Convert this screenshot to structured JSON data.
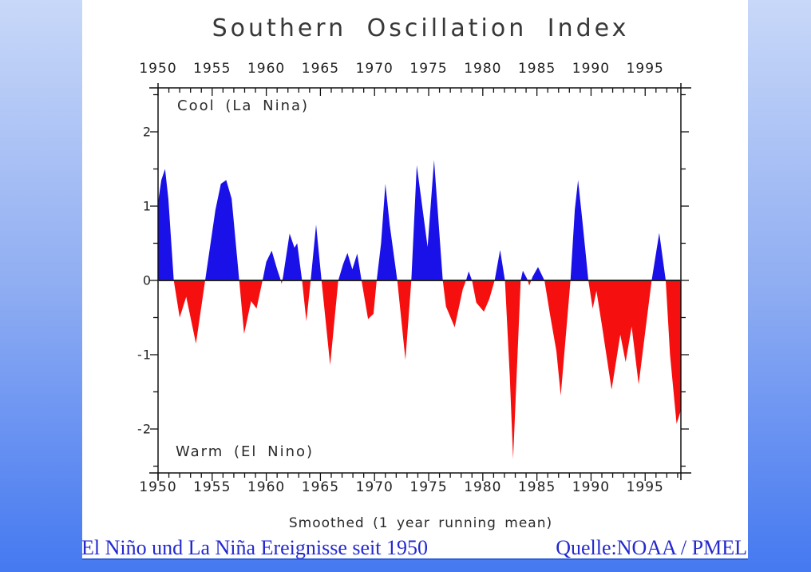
{
  "slide": {
    "background_top_color": "#c8d8f8",
    "background_bottom_color": "#4579f1",
    "caption_left": "El Niño und La Niña Ereignisse seit 1950",
    "caption_right": "Quelle:NOAA / PMEL",
    "caption_color": "#2329cf"
  },
  "chart_data": {
    "type": "area",
    "title": "Southern Oscillation Index",
    "xlabel": "Smoothed (1 year running mean)",
    "annotation_positive": "Cool (La Nina)",
    "annotation_negative": "Warm (El Nino)",
    "positive_color": "#1a10e8",
    "negative_color": "#f50f0f",
    "frame_color": "#111111",
    "zero_line_value": 0,
    "x_range": [
      1950,
      1998.3
    ],
    "y_range": [
      -2.59,
      2.59
    ],
    "x_major_ticks": [
      1950,
      1955,
      1960,
      1965,
      1970,
      1975,
      1980,
      1985,
      1990,
      1995
    ],
    "x_tick_labels": [
      "1950",
      "1955",
      "1960",
      "1965",
      "1970",
      "1975",
      "1980",
      "1985",
      "1990",
      "1995"
    ],
    "x_minor_tick_step": 1,
    "y_major_ticks": [
      2,
      1,
      0,
      -1,
      -2
    ],
    "y_tick_labels": [
      "2",
      "1",
      "0",
      "-1",
      "-2"
    ],
    "y_minor_tick_step": 0.5,
    "grid": false,
    "legend": "none",
    "series": [
      {
        "name": "Southern Oscillation Index (smoothed)",
        "points": [
          [
            1950.0,
            1.05
          ],
          [
            1950.3,
            1.35
          ],
          [
            1950.65,
            1.5
          ],
          [
            1950.95,
            1.1
          ],
          [
            1951.45,
            0
          ],
          [
            1952.0,
            -0.5
          ],
          [
            1952.6,
            -0.22
          ],
          [
            1953.5,
            -0.85
          ],
          [
            1954.35,
            0
          ],
          [
            1954.8,
            0.45
          ],
          [
            1955.3,
            0.95
          ],
          [
            1955.8,
            1.3
          ],
          [
            1956.3,
            1.35
          ],
          [
            1956.8,
            1.1
          ],
          [
            1957.5,
            0
          ],
          [
            1957.95,
            -0.72
          ],
          [
            1958.6,
            -0.28
          ],
          [
            1959.1,
            -0.38
          ],
          [
            1959.65,
            0
          ],
          [
            1960.0,
            0.25
          ],
          [
            1960.5,
            0.4
          ],
          [
            1961.0,
            0.15
          ],
          [
            1961.3,
            0.02
          ],
          [
            1961.42,
            -0.05
          ],
          [
            1961.55,
            0.05
          ],
          [
            1962.15,
            0.63
          ],
          [
            1962.6,
            0.44
          ],
          [
            1962.85,
            0.5
          ],
          [
            1963.3,
            0
          ],
          [
            1963.7,
            -0.55
          ],
          [
            1964.1,
            0
          ],
          [
            1964.6,
            0.75
          ],
          [
            1965.1,
            0
          ],
          [
            1965.9,
            -1.14
          ],
          [
            1966.65,
            0
          ],
          [
            1967.1,
            0.22
          ],
          [
            1967.5,
            0.37
          ],
          [
            1967.95,
            0.15
          ],
          [
            1968.4,
            0.36
          ],
          [
            1968.8,
            0
          ],
          [
            1969.4,
            -0.52
          ],
          [
            1969.9,
            -0.45
          ],
          [
            1970.2,
            0
          ],
          [
            1970.6,
            0.5
          ],
          [
            1971.0,
            1.3
          ],
          [
            1971.4,
            0.75
          ],
          [
            1972.1,
            0
          ],
          [
            1972.85,
            -1.07
          ],
          [
            1973.4,
            0
          ],
          [
            1973.9,
            1.55
          ],
          [
            1974.9,
            0.45
          ],
          [
            1975.5,
            1.62
          ],
          [
            1976.3,
            0
          ],
          [
            1976.6,
            -0.35
          ],
          [
            1977.4,
            -0.63
          ],
          [
            1978.15,
            -0.12
          ],
          [
            1978.45,
            0
          ],
          [
            1978.7,
            0.12
          ],
          [
            1979.0,
            0
          ],
          [
            1979.4,
            -0.3
          ],
          [
            1980.1,
            -0.42
          ],
          [
            1980.6,
            -0.25
          ],
          [
            1981.1,
            0
          ],
          [
            1981.6,
            0.41
          ],
          [
            1982.05,
            0
          ],
          [
            1982.5,
            -1.3
          ],
          [
            1982.8,
            -2.4
          ],
          [
            1983.5,
            0
          ],
          [
            1983.7,
            0.13
          ],
          [
            1984.1,
            0.02
          ],
          [
            1984.3,
            -0.07
          ],
          [
            1984.6,
            0.05
          ],
          [
            1985.1,
            0.18
          ],
          [
            1985.7,
            0
          ],
          [
            1986.2,
            -0.45
          ],
          [
            1986.8,
            -0.95
          ],
          [
            1987.2,
            -1.55
          ],
          [
            1988.1,
            0
          ],
          [
            1988.5,
            0.95
          ],
          [
            1988.8,
            1.35
          ],
          [
            1989.2,
            0.8
          ],
          [
            1989.75,
            0
          ],
          [
            1990.15,
            -0.38
          ],
          [
            1990.5,
            -0.14
          ],
          [
            1991.0,
            -0.6
          ],
          [
            1991.9,
            -1.47
          ],
          [
            1992.7,
            -0.73
          ],
          [
            1993.2,
            -1.1
          ],
          [
            1993.75,
            -0.62
          ],
          [
            1994.4,
            -1.4
          ],
          [
            1995.0,
            -0.7
          ],
          [
            1995.6,
            0
          ],
          [
            1996.3,
            0.64
          ],
          [
            1996.9,
            0
          ],
          [
            1997.3,
            -1.0
          ],
          [
            1997.9,
            -1.93
          ],
          [
            1998.3,
            -1.75
          ]
        ]
      }
    ]
  }
}
